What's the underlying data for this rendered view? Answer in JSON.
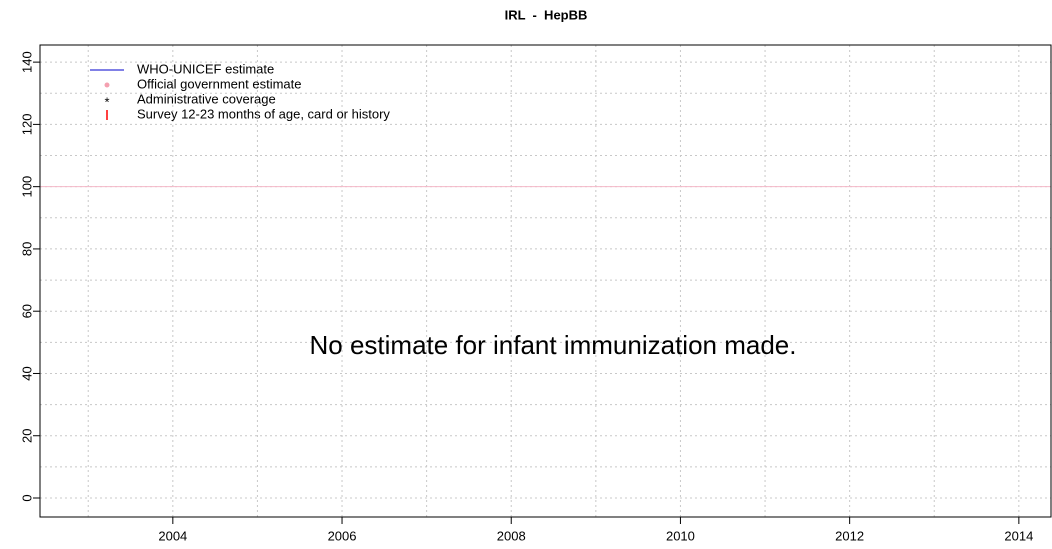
{
  "chart_data": {
    "type": "line",
    "title": "IRL  -  HepBB",
    "xlim": [
      2002.43,
      2014.38
    ],
    "xticks": [
      2004,
      2006,
      2008,
      2010,
      2012,
      2014
    ],
    "ylim": [
      -6.1,
      145.5
    ],
    "yticks": [
      0,
      20,
      40,
      60,
      80,
      100,
      120,
      140
    ],
    "grid": true,
    "xgrid": [
      2003,
      2004,
      2005,
      2006,
      2007,
      2008,
      2009,
      2010,
      2011,
      2012,
      2013,
      2014
    ],
    "ygrid": [
      0,
      10,
      20,
      30,
      40,
      50,
      60,
      70,
      80,
      90,
      100,
      110,
      120,
      130,
      140
    ],
    "reference_line": {
      "value": 100,
      "color": "#f4b8c8"
    },
    "legend_position": "top-left",
    "series": [
      {
        "name": "WHO-UNICEF estimate",
        "color": "#0000cc",
        "marker": "line",
        "values": []
      },
      {
        "name": "Official government estimate",
        "color": "#f4a0b0",
        "marker": "dot",
        "values": []
      },
      {
        "name": "Administrative coverage",
        "color": "#ff0000",
        "marker": "asterisk",
        "values": []
      },
      {
        "name": "Survey 12-23 months of age, card or history",
        "color": "#ff0000",
        "marker": "bar",
        "values": []
      }
    ],
    "annotation": "No estimate for infant immunization made."
  }
}
